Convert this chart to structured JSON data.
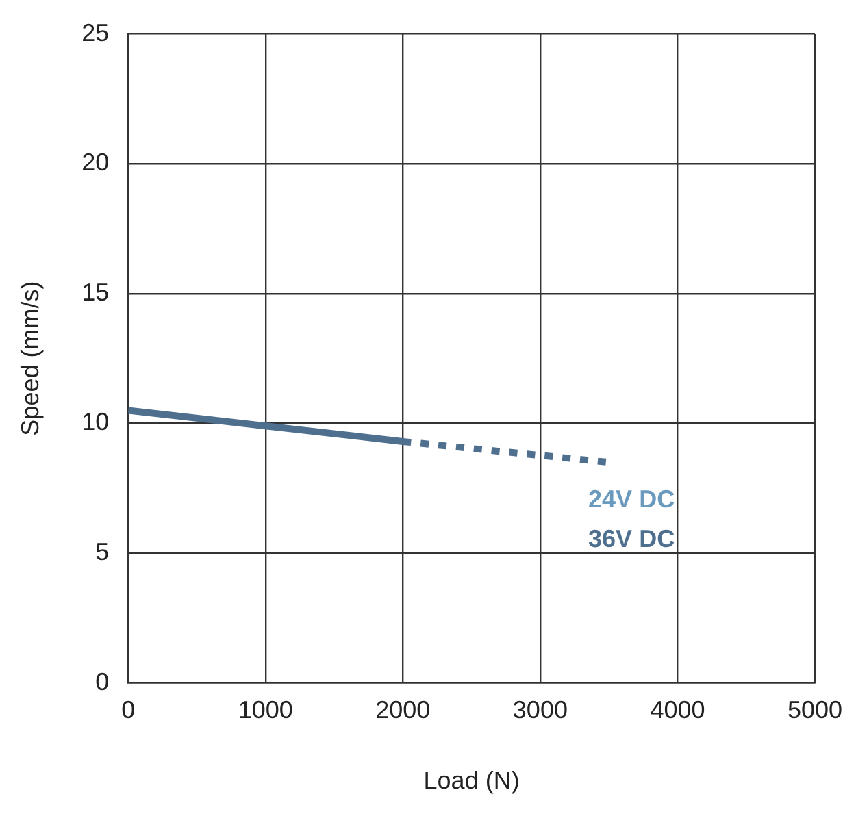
{
  "chart_data": {
    "type": "line",
    "xlabel": "Load (N)",
    "ylabel": "Speed (mm/s)",
    "xlim": [
      0,
      5000
    ],
    "xticks": [
      0,
      1000,
      2000,
      3000,
      4000,
      5000
    ],
    "ylim": [
      0,
      25
    ],
    "yticks": [
      0,
      5,
      10,
      15,
      20,
      25
    ],
    "grid": true,
    "legend": false,
    "marker": "none",
    "series": [
      {
        "name": "24V DC",
        "color": "#6a9bbf"
      },
      {
        "name": "36V DC",
        "color": "#4f6f8f",
        "x": [
          0,
          1000,
          2000
        ],
        "values": [
          10.5,
          9.9,
          9.3
        ],
        "line_style": "solid"
      },
      {
        "color": "#4f6f8f",
        "x": [
          2000,
          3500
        ],
        "values": [
          9.3,
          8.5
        ],
        "line_style": "dashed"
      }
    ]
  }
}
